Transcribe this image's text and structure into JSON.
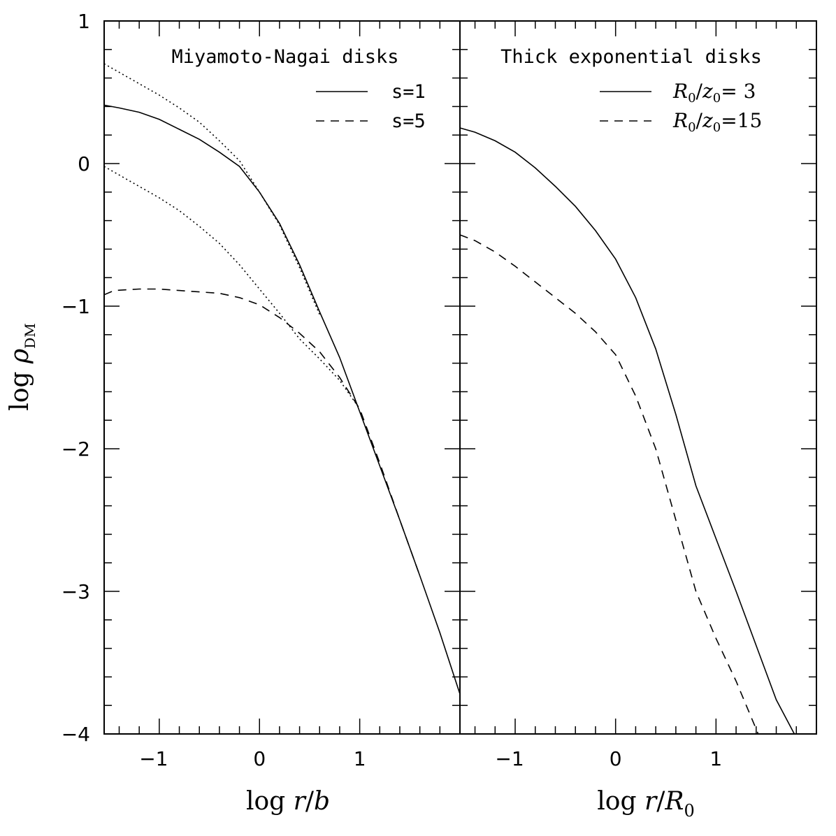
{
  "chart_data": [
    {
      "type": "line",
      "title": "Miyamoto-Nagai disks",
      "xlabel": "log r/b",
      "ylabel": "log ρDM",
      "xlim": [
        -1.55,
        2.0
      ],
      "ylim": [
        -4,
        1
      ],
      "xticks": [
        -1,
        0,
        1
      ],
      "yticks": [
        1,
        0,
        -1,
        -2,
        -3,
        -4
      ],
      "tick_labels_x": [
        "−1",
        "0",
        "1"
      ],
      "tick_labels_y": [
        "1",
        "0",
        "−1",
        "−2",
        "−3",
        "−4"
      ],
      "legend_position": "top-right",
      "series": [
        {
          "name": "s=1",
          "style": "solid",
          "points": [
            [
              -1.55,
              0.41
            ],
            [
              -1.4,
              0.39
            ],
            [
              -1.2,
              0.36
            ],
            [
              -1.0,
              0.31
            ],
            [
              -0.8,
              0.24
            ],
            [
              -0.6,
              0.17
            ],
            [
              -0.4,
              0.08
            ],
            [
              -0.2,
              -0.02
            ],
            [
              0.0,
              -0.2
            ],
            [
              0.2,
              -0.42
            ],
            [
              0.4,
              -0.71
            ],
            [
              0.6,
              -1.04
            ],
            [
              0.8,
              -1.36
            ],
            [
              1.0,
              -1.74
            ],
            [
              1.2,
              -2.12
            ],
            [
              1.4,
              -2.5
            ],
            [
              1.6,
              -2.89
            ],
            [
              1.8,
              -3.29
            ],
            [
              2.0,
              -3.72
            ]
          ]
        },
        {
          "name": "s=5",
          "style": "dashed",
          "points": [
            [
              -1.55,
              -0.92
            ],
            [
              -1.45,
              -0.89
            ],
            [
              -1.2,
              -0.88
            ],
            [
              -1.0,
              -0.88
            ],
            [
              -0.8,
              -0.89
            ],
            [
              -0.6,
              -0.9
            ],
            [
              -0.4,
              -0.91
            ],
            [
              -0.2,
              -0.94
            ],
            [
              0.0,
              -0.99
            ],
            [
              0.2,
              -1.08
            ],
            [
              0.4,
              -1.19
            ],
            [
              0.6,
              -1.32
            ],
            [
              0.8,
              -1.5
            ],
            [
              1.0,
              -1.72
            ],
            [
              1.2,
              -2.1
            ],
            [
              1.4,
              -2.5
            ],
            [
              1.6,
              -2.89
            ]
          ]
        },
        {
          "name": "",
          "style": "dotted",
          "points": [
            [
              -1.55,
              0.7
            ],
            [
              -1.3,
              0.6
            ],
            [
              -1.0,
              0.48
            ],
            [
              -0.8,
              0.39
            ],
            [
              -0.6,
              0.29
            ],
            [
              -0.4,
              0.16
            ],
            [
              -0.2,
              0.02
            ],
            [
              0.0,
              -0.2
            ],
            [
              0.2,
              -0.43
            ],
            [
              0.4,
              -0.73
            ],
            [
              0.6,
              -1.06
            ]
          ]
        },
        {
          "name": "",
          "style": "dotted",
          "points": [
            [
              -1.55,
              -0.02
            ],
            [
              -1.3,
              -0.12
            ],
            [
              -1.0,
              -0.24
            ],
            [
              -0.8,
              -0.33
            ],
            [
              -0.6,
              -0.44
            ],
            [
              -0.4,
              -0.56
            ],
            [
              -0.2,
              -0.71
            ],
            [
              0.0,
              -0.88
            ],
            [
              0.2,
              -1.05
            ],
            [
              0.4,
              -1.23
            ],
            [
              0.6,
              -1.37
            ],
            [
              0.8,
              -1.52
            ],
            [
              1.0,
              -1.72
            ]
          ]
        }
      ],
      "legend": [
        {
          "label": "s=1",
          "style": "solid"
        },
        {
          "label": "s=5",
          "style": "dashed"
        }
      ]
    },
    {
      "type": "line",
      "title": "Thick exponential disks",
      "xlabel": "log r/R0",
      "ylabel": "",
      "xlim": [
        -1.55,
        2.0
      ],
      "ylim": [
        -4,
        1
      ],
      "xticks": [
        -1,
        0,
        1
      ],
      "yticks": [
        1,
        0,
        -1,
        -2,
        -3,
        -4
      ],
      "tick_labels_x": [
        "−1",
        "0",
        "1"
      ],
      "legend_position": "top-right",
      "series": [
        {
          "name": "R0/z0= 3",
          "style": "solid",
          "points": [
            [
              -1.55,
              0.25
            ],
            [
              -1.4,
              0.22
            ],
            [
              -1.2,
              0.16
            ],
            [
              -1.0,
              0.08
            ],
            [
              -0.8,
              -0.03
            ],
            [
              -0.6,
              -0.16
            ],
            [
              -0.4,
              -0.3
            ],
            [
              -0.2,
              -0.47
            ],
            [
              0.0,
              -0.67
            ],
            [
              0.2,
              -0.94
            ],
            [
              0.4,
              -1.3
            ],
            [
              0.6,
              -1.76
            ],
            [
              0.8,
              -2.26
            ],
            [
              1.0,
              -2.63
            ],
            [
              1.2,
              -3.0
            ],
            [
              1.4,
              -3.38
            ],
            [
              1.6,
              -3.76
            ],
            [
              1.78,
              -4.0
            ]
          ]
        },
        {
          "name": "R0/z0=15",
          "style": "dashed",
          "points": [
            [
              -1.55,
              -0.5
            ],
            [
              -1.4,
              -0.54
            ],
            [
              -1.2,
              -0.62
            ],
            [
              -1.0,
              -0.72
            ],
            [
              -0.8,
              -0.83
            ],
            [
              -0.6,
              -0.94
            ],
            [
              -0.4,
              -1.05
            ],
            [
              -0.2,
              -1.18
            ],
            [
              0.0,
              -1.34
            ],
            [
              0.2,
              -1.63
            ],
            [
              0.4,
              -2.0
            ],
            [
              0.6,
              -2.5
            ],
            [
              0.8,
              -3.0
            ],
            [
              1.0,
              -3.33
            ],
            [
              1.2,
              -3.63
            ],
            [
              1.42,
              -4.0
            ]
          ]
        }
      ],
      "legend": [
        {
          "label": "R0/z0= 3",
          "style": "solid"
        },
        {
          "label": "R0/z0=15",
          "style": "dashed"
        }
      ]
    }
  ],
  "labels": {
    "title_left": "Miyamoto-Nagai disks",
    "title_right": "Thick exponential disks",
    "legend_left_1": "s=1",
    "legend_left_2": "s=5",
    "legend_right_1_num": "3",
    "legend_right_2_num": "15",
    "xlabel_left": "log r/b",
    "xlabel_right": "log r/R0",
    "ylabel": "log ρDM"
  }
}
